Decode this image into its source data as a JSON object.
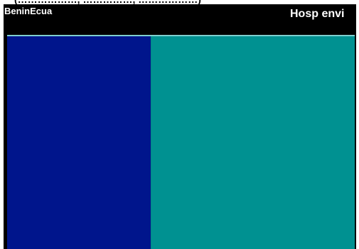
{
  "chart_data": {
    "type": "bar",
    "title": "",
    "clipped_title_fragment": "(………………, ……………, ………………)",
    "categories": [
      "Benin",
      "Ecua"
    ],
    "category_label_text": "BeninEcua",
    "series": [
      {
        "label": "Hosp envi",
        "values": [
          10,
          14.2
        ]
      }
    ],
    "xlabel": "",
    "ylabel": "",
    "grid": false,
    "legend": "none",
    "colors": {
      "header_bg": "#000000",
      "divider": "#7fd0cf",
      "bar_1": "#00158c",
      "bar_2": "#009191",
      "frame": "#000000",
      "label": "#ffffff"
    }
  }
}
